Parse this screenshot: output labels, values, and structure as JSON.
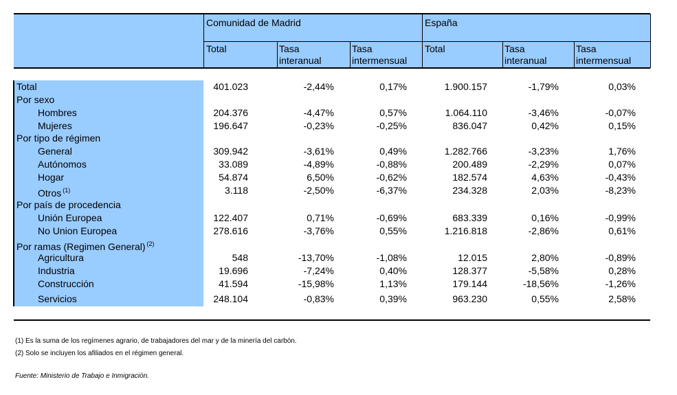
{
  "header": {
    "group_madrid": "Comunidad de Madrid",
    "group_espana": "España",
    "columns": [
      {
        "line1": "Total",
        "line2": ""
      },
      {
        "line1": "Tasa",
        "line2": "interanual"
      },
      {
        "line1": "Tasa",
        "line2": "intermensual"
      },
      {
        "line1": "Total",
        "line2": ""
      },
      {
        "line1": "Tasa",
        "line2": "interanual"
      },
      {
        "line1": "Tasa",
        "line2": "intermensual"
      }
    ]
  },
  "rows": [
    {
      "label": "Total",
      "indent": false,
      "values": [
        "401.023",
        "-2,44%",
        "0,17%",
        "1.900.157",
        "-1,79%",
        "0,03%"
      ]
    },
    {
      "label": "Por sexo",
      "indent": false,
      "values": []
    },
    {
      "label": "Hombres",
      "indent": true,
      "values": [
        "204.376",
        "-4,47%",
        "0,57%",
        "1.064.110",
        "-3,46%",
        "-0,07%"
      ]
    },
    {
      "label": "Mujeres",
      "indent": true,
      "values": [
        "196.647",
        "-0,23%",
        "-0,25%",
        "836.047",
        "0,42%",
        "0,15%"
      ]
    },
    {
      "label": "Por tipo de régimen",
      "indent": false,
      "values": []
    },
    {
      "label": "General",
      "indent": true,
      "values": [
        "309.942",
        "-3,61%",
        "0,49%",
        "1.282.766",
        "-3,23%",
        "1,76%"
      ]
    },
    {
      "label": "Autónomos",
      "indent": true,
      "values": [
        "33.089",
        "-4,89%",
        "-0,88%",
        "200.489",
        "-2,29%",
        "0,07%"
      ]
    },
    {
      "label": "Hogar",
      "indent": true,
      "values": [
        "54.874",
        "6,50%",
        "-0,62%",
        "182.574",
        "4,63%",
        "-0,43%"
      ]
    },
    {
      "label": "Otros",
      "note": "(1)",
      "indent": true,
      "values": [
        "3.118",
        "-2,50%",
        "-6,37%",
        "234.328",
        "2,03%",
        "-8,23%"
      ]
    },
    {
      "label": "Por país de procedencia",
      "indent": false,
      "values": []
    },
    {
      "label": "Unión Europea",
      "indent": true,
      "values": [
        "122.407",
        "0,71%",
        "-0,69%",
        "683.339",
        "0,16%",
        "-0,99%"
      ]
    },
    {
      "label": "No Union Europea",
      "indent": true,
      "values": [
        "278.616",
        "-3,76%",
        "0,55%",
        "1.216.818",
        "-2,86%",
        "0,61%"
      ]
    },
    {
      "label": "Por ramas (Regimen General)",
      "note": "(2)",
      "indent": false,
      "values": []
    },
    {
      "label": "Agricultura",
      "indent": true,
      "values": [
        "548",
        "-13,70%",
        "-1,08%",
        "12.015",
        "2,80%",
        "-0,89%"
      ]
    },
    {
      "label": "Industria",
      "indent": true,
      "values": [
        "19.696",
        "-7,24%",
        "0,40%",
        "128.377",
        "-5,58%",
        "0,28%"
      ]
    },
    {
      "label": "Construcción",
      "indent": true,
      "values": [
        "41.594",
        "-15,98%",
        "1,13%",
        "179.144",
        "-18,56%",
        "-1,26%"
      ]
    },
    {
      "label": "Servicios",
      "indent": true,
      "values": [
        "248.104",
        "-0,83%",
        "0,39%",
        "963.230",
        "0,55%",
        "2,58%"
      ]
    }
  ],
  "footnotes": [
    "(1) Es la suma de los regímenes  agrario, de trabajadores del mar y de la minería del carbón.",
    "(2) Solo se incluyen los afiliados en el régimen general."
  ],
  "source": "Fuente: Ministerio de Trabajo e Inmigración."
}
